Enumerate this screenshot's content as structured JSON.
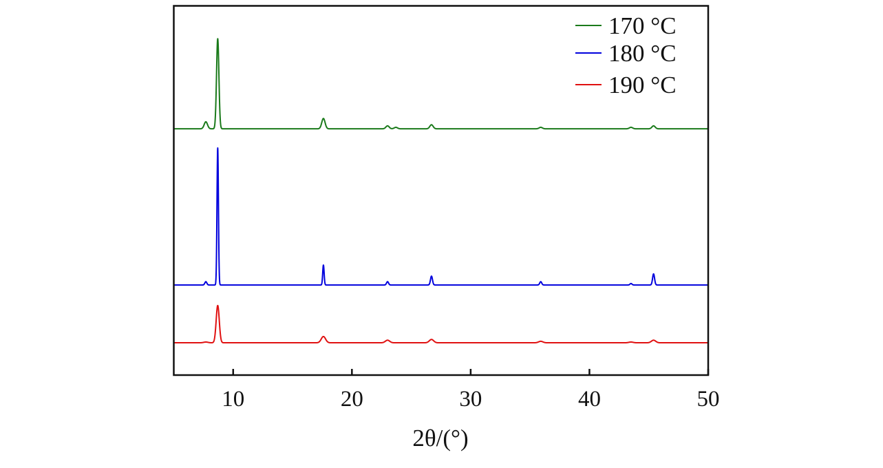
{
  "chart_data": {
    "type": "line",
    "title": "",
    "xlabel": "2θ/(°)",
    "ylabel": "",
    "xlim": [
      5,
      50
    ],
    "ylim": [
      0,
      100
    ],
    "y_units": "arbitrary (stacked, no y ticks)",
    "xticks": [
      10,
      20,
      30,
      40,
      50
    ],
    "grid": false,
    "legend_position": "top-right",
    "series": [
      {
        "name": "170 °C",
        "color": "#1a7a1a",
        "baseline": 66.7,
        "peak_width": 0.1,
        "peaks": [
          {
            "x": 7.7,
            "height": 1.9
          },
          {
            "x": 8.7,
            "height": 24.4
          },
          {
            "x": 17.6,
            "height": 2.8
          },
          {
            "x": 23.0,
            "height": 0.8
          },
          {
            "x": 23.7,
            "height": 0.4
          },
          {
            "x": 26.7,
            "height": 1.1
          },
          {
            "x": 35.9,
            "height": 0.4
          },
          {
            "x": 43.5,
            "height": 0.4
          },
          {
            "x": 45.4,
            "height": 0.8
          }
        ]
      },
      {
        "name": "180 °C",
        "color": "#0000dd",
        "baseline": 24.4,
        "peak_width": 0.06,
        "peaks": [
          {
            "x": 7.7,
            "height": 0.9
          },
          {
            "x": 8.7,
            "height": 37.1
          },
          {
            "x": 17.6,
            "height": 5.4
          },
          {
            "x": 23.0,
            "height": 0.9
          },
          {
            "x": 26.7,
            "height": 2.4
          },
          {
            "x": 35.9,
            "height": 0.9
          },
          {
            "x": 43.5,
            "height": 0.4
          },
          {
            "x": 45.4,
            "height": 3.0
          }
        ]
      },
      {
        "name": "190 °C",
        "color": "#e01010",
        "baseline": 8.75,
        "peak_width": 0.13,
        "peaks": [
          {
            "x": 7.7,
            "height": 0.2
          },
          {
            "x": 8.7,
            "height": 10.1
          },
          {
            "x": 17.6,
            "height": 1.7
          },
          {
            "x": 23.0,
            "height": 0.7
          },
          {
            "x": 26.7,
            "height": 0.9
          },
          {
            "x": 35.9,
            "height": 0.4
          },
          {
            "x": 43.5,
            "height": 0.2
          },
          {
            "x": 45.4,
            "height": 0.7
          }
        ]
      }
    ]
  }
}
